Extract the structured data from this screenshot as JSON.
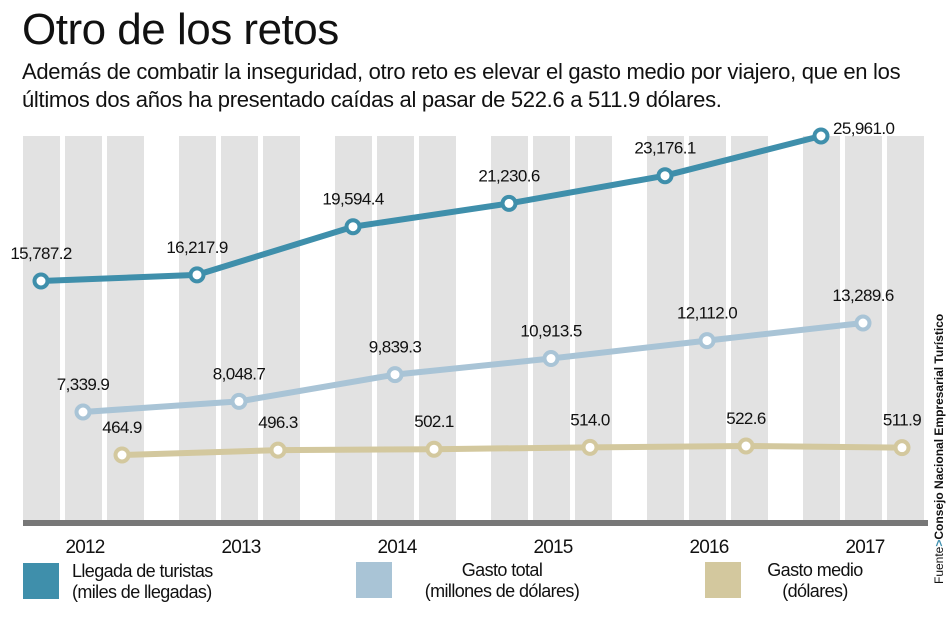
{
  "header": {
    "title": "Otro de los retos",
    "subtitle": "Además de combatir la inseguridad, otro reto es elevar el gasto medio por viajero, que en los últimos dos años ha presentado caídas al pasar de 522.6 a 511.9 dólares."
  },
  "source": {
    "prefix": "Fuente",
    "separator": ">",
    "organization": "Consejo Nacional Empresarial Turístico"
  },
  "legend": [
    {
      "line1": "Llegada de turistas",
      "line2": "(miles de llegadas)",
      "color": "#3f8fab"
    },
    {
      "line1": "Gasto total",
      "line2": "(millones de dólares)",
      "color": "#a9c4d6"
    },
    {
      "line1": "Gasto medio",
      "line2": "(dólares)",
      "color": "#d3c89e"
    }
  ],
  "chart_data": {
    "type": "line",
    "title": "Otro de los retos",
    "categories": [
      "2012",
      "2013",
      "2014",
      "2015",
      "2016",
      "2017"
    ],
    "xlabel": "",
    "ylabel": "",
    "grid": "vertical column bands",
    "legend_position": "bottom",
    "series": [
      {
        "name": "Llegada de turistas (miles de llegadas)",
        "color": "#3f8fab",
        "values": [
          15787.2,
          16217.9,
          19594.4,
          21230.6,
          23176.1,
          25961.0
        ],
        "labels": [
          "15,787.2",
          "16,217.9",
          "19,594.4",
          "21,230.6",
          "23,176.1",
          "25,961.0"
        ]
      },
      {
        "name": "Gasto total (millones de dólares)",
        "color": "#a9c4d6",
        "values": [
          7339.9,
          8048.7,
          9839.3,
          10913.5,
          12112.0,
          13289.6
        ],
        "labels": [
          "7,339.9",
          "8,048.7",
          "9,839.3",
          "10,913.5",
          "12,112.0",
          "13,289.6"
        ]
      },
      {
        "name": "Gasto medio (dólares)",
        "color": "#d3c89e",
        "values": [
          464.9,
          496.3,
          502.1,
          514.0,
          522.6,
          511.9
        ],
        "labels": [
          "464.9",
          "496.3",
          "502.1",
          "514.0",
          "522.6",
          "511.9"
        ]
      }
    ]
  }
}
